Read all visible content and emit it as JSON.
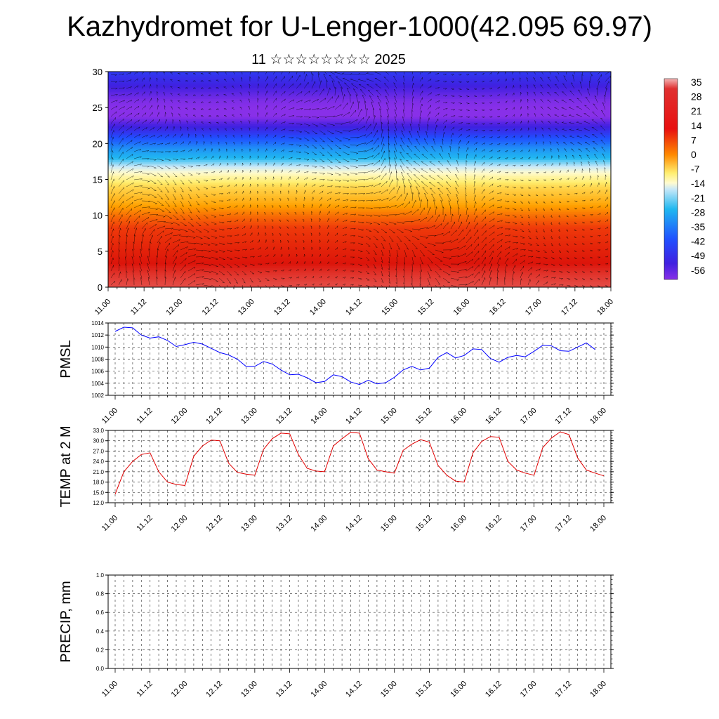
{
  "title": "Kazhydromet for U-Lenger-1000(42.095 69.97)",
  "subtitle": "11 ☆☆☆☆☆☆☆☆ 2025",
  "time_labels": [
    "11.00",
    "11.12",
    "12.00",
    "12.12",
    "13.00",
    "13.12",
    "14.00",
    "14.12",
    "15.00",
    "15.12",
    "16.00",
    "16.12",
    "17.00",
    "17.12",
    "18.00"
  ],
  "colorbar_labels": [
    "35",
    "28",
    "21",
    "14",
    "7",
    "0",
    "-7",
    "-14",
    "-21",
    "-28",
    "-35",
    "-42",
    "-49",
    "-56"
  ],
  "chart_data": [
    {
      "type": "heatmap",
      "title": "",
      "ylabel": "",
      "ylim": [
        0,
        30
      ],
      "yticks": [
        "0",
        "5",
        "10",
        "15",
        "20",
        "25",
        "30"
      ],
      "levels": [
        0,
        2,
        4,
        6,
        8,
        10,
        12,
        14,
        16,
        18,
        20,
        22,
        24,
        26,
        28,
        30
      ],
      "temperature_profile": [
        28,
        26,
        23,
        20,
        17,
        12,
        6,
        1,
        -8,
        -22,
        -35,
        -48,
        -57,
        -55,
        -50,
        -45
      ],
      "colorbar_range": [
        -56,
        35
      ]
    },
    {
      "type": "line",
      "ylabel": "PMSL",
      "ylim": [
        1002,
        1014
      ],
      "yticks": [
        "1002",
        "1004",
        "1006",
        "1008",
        "1010",
        "1012",
        "1014"
      ],
      "series": [
        {
          "color": "#0000ff",
          "x": [
            0,
            3,
            6,
            9,
            12,
            15,
            18,
            21,
            24,
            27,
            30,
            33,
            36,
            39,
            42,
            45,
            48,
            51,
            54,
            57,
            60,
            63,
            66,
            69,
            72,
            75,
            78,
            81,
            84,
            87,
            90,
            93,
            96,
            99,
            102,
            105,
            108,
            111,
            114,
            117,
            120,
            123,
            126,
            129,
            132,
            135,
            138,
            141,
            144,
            147,
            150,
            153,
            156,
            159,
            162,
            165
          ],
          "values": [
            1012.6,
            1013.3,
            1013.2,
            1012.0,
            1011.5,
            1011.7,
            1011.1,
            1010.1,
            1010.4,
            1010.8,
            1010.5,
            1009.8,
            1009.1,
            1008.7,
            1008.0,
            1006.8,
            1006.8,
            1007.6,
            1007.2,
            1006.2,
            1005.4,
            1005.5,
            1004.9,
            1004.1,
            1004.3,
            1005.4,
            1005.1,
            1004.2,
            1003.8,
            1004.5,
            1003.9,
            1004.1,
            1005.0,
            1006.2,
            1006.8,
            1006.2,
            1006.5,
            1008.3,
            1009.1,
            1008.2,
            1008.6,
            1009.7,
            1009.6,
            1008.1,
            1007.5,
            1008.3,
            1008.6,
            1008.4,
            1009.3,
            1010.3,
            1010.2,
            1009.4,
            1009.3,
            1010.0,
            1010.7,
            1009.6
          ]
        }
      ]
    },
    {
      "type": "line",
      "ylabel": "TEMP at 2 M",
      "ylim": [
        12.0,
        33.0
      ],
      "yticks": [
        "12.0",
        "15.0",
        "18.0",
        "21.0",
        "24.0",
        "27.0",
        "30.0",
        "33.0"
      ],
      "series": [
        {
          "color": "#e00000",
          "x": [
            0,
            3,
            6,
            9,
            12,
            15,
            18,
            21,
            24,
            27,
            30,
            33,
            36,
            39,
            42,
            45,
            48,
            51,
            54,
            57,
            60,
            63,
            66,
            69,
            72,
            75,
            78,
            81,
            84,
            87,
            90,
            93,
            96,
            99,
            102,
            105,
            108,
            111,
            114,
            117,
            120,
            123,
            126,
            129,
            132,
            135,
            138,
            141,
            144,
            147,
            150,
            153,
            156,
            159,
            162,
            165,
            168
          ],
          "values": [
            14.5,
            21.0,
            24.0,
            26.0,
            26.5,
            21.0,
            18.0,
            17.3,
            17.0,
            25.5,
            28.5,
            30.2,
            30.0,
            23.5,
            20.8,
            20.3,
            20.0,
            27.5,
            30.6,
            32.2,
            32.0,
            26.0,
            22.0,
            21.2,
            21.0,
            28.5,
            30.6,
            32.5,
            32.2,
            24.8,
            21.5,
            21.0,
            20.6,
            27.2,
            29.0,
            30.3,
            29.6,
            22.8,
            20.0,
            18.3,
            18.0,
            26.5,
            29.8,
            31.2,
            31.0,
            24.0,
            21.5,
            20.6,
            20.0,
            28.0,
            30.8,
            32.6,
            31.8,
            25.0,
            21.5,
            20.6,
            19.8
          ]
        }
      ]
    },
    {
      "type": "line",
      "ylabel": "PRECIP, mm",
      "ylim": [
        0.0,
        1.0
      ],
      "yticks": [
        "0.0",
        "0.2",
        "0.4",
        "0.6",
        "0.8",
        "1.0"
      ],
      "series": [
        {
          "color": "#000000",
          "x": [
            0,
            168
          ],
          "values": [
            0.0,
            0.0
          ]
        }
      ]
    }
  ]
}
